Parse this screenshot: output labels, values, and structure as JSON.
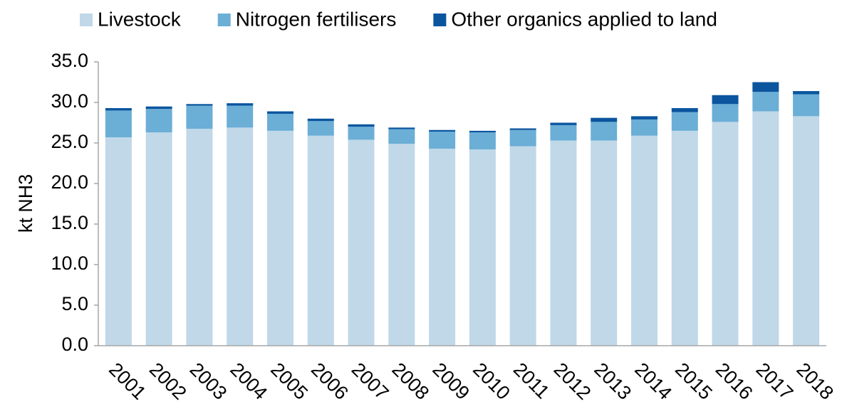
{
  "chart_data": {
    "type": "stacked_bar",
    "y_label": "kt NH3",
    "categories": [
      "2001",
      "2002",
      "2003",
      "2004",
      "2005",
      "2006",
      "2007",
      "2008",
      "2009",
      "2010",
      "2011",
      "2012",
      "2013",
      "2014",
      "2015",
      "2016",
      "2017",
      "2018"
    ],
    "series": [
      {
        "name": "Livestock",
        "color": "#c0d8e8",
        "values": [
          25.7,
          26.3,
          26.75,
          26.9,
          26.5,
          25.9,
          25.4,
          24.9,
          24.3,
          24.2,
          24.6,
          25.3,
          25.3,
          25.9,
          26.5,
          27.6,
          28.9,
          28.3
        ]
      },
      {
        "name": "Nitrogen fertilisers",
        "color": "#6baed6",
        "values": [
          3.3,
          2.9,
          2.85,
          2.7,
          2.1,
          1.8,
          1.6,
          1.8,
          2.1,
          2.1,
          2.0,
          1.9,
          2.3,
          2.0,
          2.3,
          2.2,
          2.4,
          2.7
        ]
      },
      {
        "name": "Other organics applied to land",
        "color": "#0b559f",
        "values": [
          0.3,
          0.3,
          0.2,
          0.3,
          0.3,
          0.3,
          0.3,
          0.2,
          0.2,
          0.2,
          0.2,
          0.3,
          0.5,
          0.4,
          0.5,
          1.1,
          1.2,
          0.4
        ]
      }
    ],
    "ylim": [
      0,
      35
    ],
    "yticks": [
      {
        "value": 0,
        "label": "0.0"
      },
      {
        "value": 5,
        "label": "5.0"
      },
      {
        "value": 10,
        "label": "10.0"
      },
      {
        "value": 15,
        "label": "15.0"
      },
      {
        "value": 20,
        "label": "20.0"
      },
      {
        "value": 25,
        "label": "25.0"
      },
      {
        "value": 30,
        "label": "30.0"
      },
      {
        "value": 35,
        "label": "35.0"
      }
    ],
    "legend": "top"
  }
}
